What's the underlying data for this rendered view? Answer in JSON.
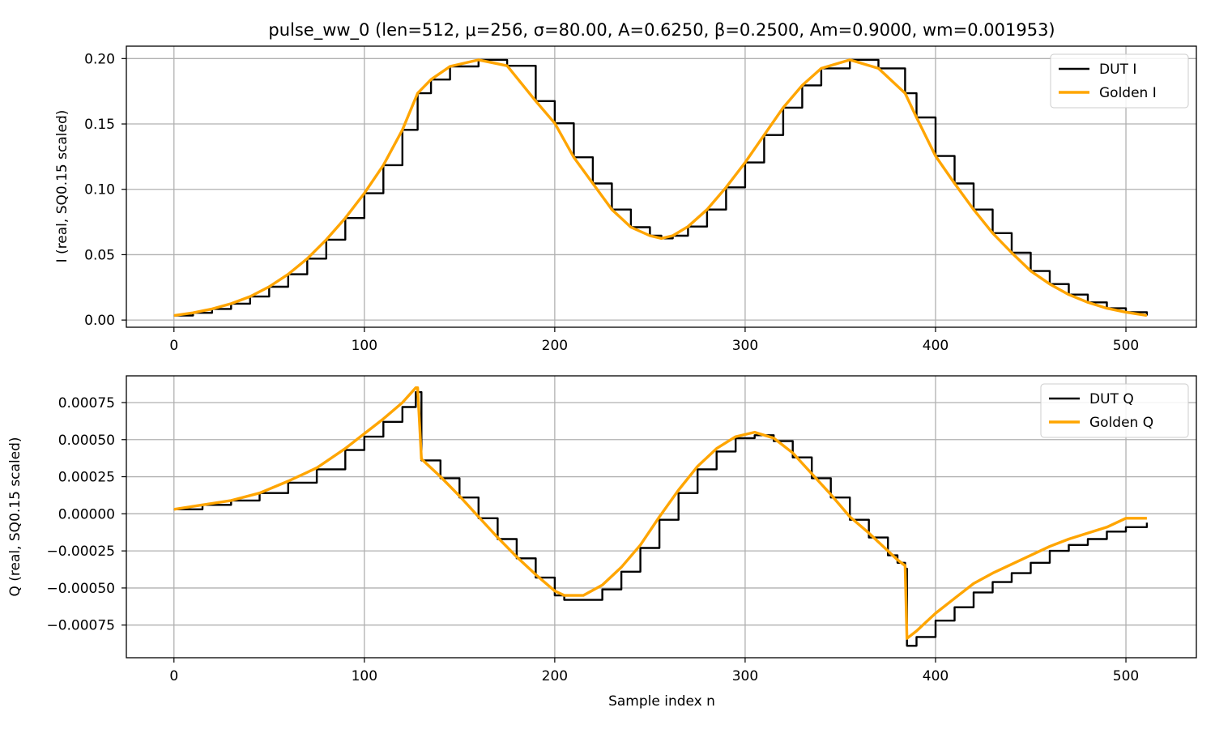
{
  "figure": {
    "title": "pulse_ww_0  (len=512, μ=256, σ=80.00, A=0.6250, β=0.2500, Am=0.9000, wm=0.001953)",
    "colors": {
      "dut": "#000000",
      "golden": "#FFA500",
      "grid": "#b0b0b0",
      "axes": "#000000"
    }
  },
  "chart_data": [
    {
      "type": "line",
      "panel": "top",
      "ylabel": "I (real, SQ0.15 scaled)",
      "xlabel": "",
      "xlim": [
        -25,
        537
      ],
      "ylim": [
        -0.0055,
        0.2095
      ],
      "xticks": [
        0,
        100,
        200,
        300,
        400,
        500
      ],
      "xtick_labels": [
        "0",
        "100",
        "200",
        "300",
        "400",
        "500"
      ],
      "yticks": [
        0.0,
        0.05,
        0.1,
        0.15,
        0.2
      ],
      "ytick_labels": [
        "0.00",
        "0.05",
        "0.10",
        "0.15",
        "0.20"
      ],
      "grid": true,
      "legend_position": "top-right",
      "series": [
        {
          "name": "DUT I",
          "color": "#000000",
          "x": [
            0,
            10,
            20,
            30,
            40,
            50,
            60,
            70,
            80,
            90,
            100,
            110,
            120,
            128,
            135,
            145,
            160,
            175,
            190,
            200,
            210,
            220,
            230,
            240,
            250,
            256,
            262,
            270,
            280,
            290,
            300,
            310,
            320,
            330,
            340,
            355,
            370,
            384,
            390,
            400,
            410,
            420,
            430,
            440,
            450,
            460,
            470,
            480,
            490,
            500,
            511
          ],
          "y": [
            0.0035,
            0.0055,
            0.0085,
            0.0125,
            0.018,
            0.0255,
            0.035,
            0.047,
            0.0615,
            0.078,
            0.097,
            0.1185,
            0.1455,
            0.1735,
            0.184,
            0.194,
            0.199,
            0.1945,
            0.1675,
            0.1505,
            0.1245,
            0.1045,
            0.0845,
            0.071,
            0.0645,
            0.0625,
            0.0645,
            0.0715,
            0.0845,
            0.1015,
            0.1205,
            0.1415,
            0.1625,
            0.1795,
            0.1925,
            0.199,
            0.1925,
            0.1735,
            0.155,
            0.1255,
            0.1045,
            0.0845,
            0.0665,
            0.0515,
            0.0375,
            0.0275,
            0.0195,
            0.0135,
            0.009,
            0.006,
            0.0035
          ]
        },
        {
          "name": "Golden I",
          "color": "#FFA500",
          "x": [
            0,
            10,
            20,
            30,
            40,
            50,
            60,
            70,
            80,
            90,
            100,
            110,
            120,
            128,
            135,
            145,
            160,
            175,
            190,
            200,
            210,
            220,
            230,
            240,
            250,
            256,
            262,
            270,
            280,
            290,
            300,
            310,
            320,
            330,
            340,
            355,
            370,
            384,
            390,
            400,
            410,
            420,
            430,
            440,
            450,
            460,
            470,
            480,
            490,
            500,
            511
          ],
          "y": [
            0.0035,
            0.0055,
            0.0085,
            0.0125,
            0.018,
            0.0255,
            0.035,
            0.047,
            0.0615,
            0.078,
            0.097,
            0.1185,
            0.1455,
            0.1735,
            0.184,
            0.194,
            0.199,
            0.1945,
            0.1675,
            0.1505,
            0.1245,
            0.1045,
            0.0845,
            0.071,
            0.0645,
            0.0625,
            0.0645,
            0.0715,
            0.0845,
            0.1015,
            0.1205,
            0.1415,
            0.1625,
            0.1795,
            0.1925,
            0.199,
            0.1925,
            0.1735,
            0.155,
            0.1255,
            0.1045,
            0.0845,
            0.0665,
            0.0515,
            0.0375,
            0.0275,
            0.0195,
            0.0135,
            0.009,
            0.006,
            0.0035
          ]
        }
      ]
    },
    {
      "type": "line",
      "panel": "bottom",
      "ylabel": "Q (real, SQ0.15 scaled)",
      "xlabel": "Sample index n",
      "xlim": [
        -25,
        537
      ],
      "ylim": [
        -0.00097,
        0.00093
      ],
      "xticks": [
        0,
        100,
        200,
        300,
        400,
        500
      ],
      "xtick_labels": [
        "0",
        "100",
        "200",
        "300",
        "400",
        "500"
      ],
      "yticks": [
        -0.00075,
        -0.0005,
        -0.00025,
        0.0,
        0.00025,
        0.0005,
        0.00075
      ],
      "ytick_labels": [
        "−0.00075",
        "−0.00050",
        "−0.00025",
        "0.00000",
        "0.00025",
        "0.00050",
        "0.00075"
      ],
      "grid": true,
      "legend_position": "top-right",
      "series": [
        {
          "name": "DUT Q",
          "color": "#000000",
          "x": [
            0,
            15,
            30,
            45,
            60,
            75,
            90,
            100,
            110,
            120,
            127,
            128,
            130,
            140,
            150,
            160,
            170,
            180,
            190,
            200,
            205,
            215,
            225,
            235,
            245,
            255,
            265,
            275,
            285,
            295,
            305,
            315,
            325,
            335,
            345,
            355,
            365,
            375,
            380,
            384,
            385,
            390,
            400,
            410,
            420,
            430,
            440,
            450,
            460,
            470,
            480,
            490,
            500,
            511
          ],
          "y": [
            3e-05,
            6e-05,
            9e-05,
            0.00014,
            0.00021,
            0.0003,
            0.00043,
            0.00052,
            0.00062,
            0.00072,
            0.00082,
            0.00082,
            0.00036,
            0.00024,
            0.00011,
            -3e-05,
            -0.00017,
            -0.0003,
            -0.00043,
            -0.00055,
            -0.00058,
            -0.00058,
            -0.00051,
            -0.00039,
            -0.00023,
            -4e-05,
            0.00014,
            0.0003,
            0.00042,
            0.00051,
            0.00053,
            0.00049,
            0.00038,
            0.00024,
            0.00011,
            -4e-05,
            -0.00016,
            -0.00028,
            -0.00033,
            -0.00037,
            -0.00089,
            -0.00083,
            -0.00072,
            -0.00063,
            -0.00053,
            -0.00046,
            -0.0004,
            -0.00033,
            -0.00025,
            -0.00021,
            -0.00017,
            -0.00012,
            -9e-05,
            -6e-05
          ]
        },
        {
          "name": "Golden Q",
          "color": "#FFA500",
          "x": [
            0,
            15,
            30,
            45,
            60,
            75,
            90,
            100,
            110,
            120,
            127,
            128,
            130,
            140,
            150,
            160,
            170,
            180,
            190,
            200,
            205,
            215,
            225,
            235,
            245,
            255,
            265,
            275,
            285,
            295,
            305,
            315,
            325,
            335,
            345,
            355,
            365,
            375,
            380,
            384,
            385,
            390,
            400,
            410,
            420,
            430,
            440,
            450,
            460,
            470,
            480,
            490,
            500,
            511
          ],
          "y": [
            3e-05,
            6e-05,
            9e-05,
            0.00014,
            0.00022,
            0.00031,
            0.00044,
            0.00054,
            0.00064,
            0.00075,
            0.00085,
            0.00085,
            0.00037,
            0.00025,
            0.00012,
            -2e-05,
            -0.00016,
            -0.00029,
            -0.00041,
            -0.00052,
            -0.00055,
            -0.00055,
            -0.00048,
            -0.00036,
            -0.00021,
            -2e-05,
            0.00016,
            0.00032,
            0.00044,
            0.00052,
            0.00055,
            0.00051,
            0.00041,
            0.00027,
            0.00013,
            -2e-05,
            -0.00013,
            -0.00025,
            -0.00031,
            -0.00035,
            -0.00084,
            -0.00079,
            -0.00067,
            -0.00057,
            -0.00047,
            -0.0004,
            -0.00034,
            -0.00028,
            -0.00022,
            -0.00017,
            -0.00013,
            -9e-05,
            -3e-05,
            -3e-05
          ]
        }
      ]
    }
  ]
}
